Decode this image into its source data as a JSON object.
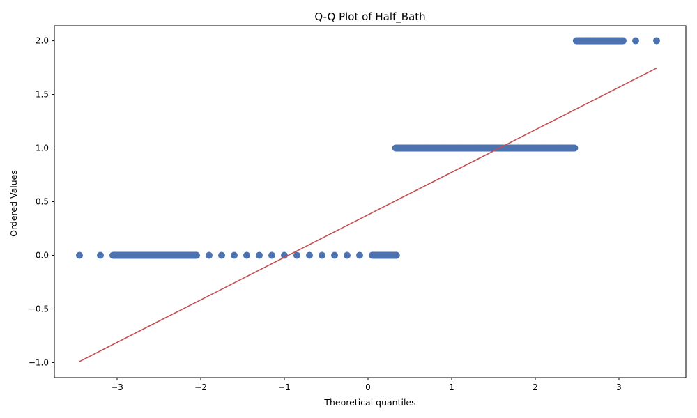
{
  "chart_data": {
    "type": "scatter",
    "title": "Q-Q Plot of Half_Bath",
    "xlabel": "Theoretical quantiles",
    "ylabel": "Ordered Values",
    "xlim": [
      -3.75,
      3.8
    ],
    "ylim": [
      -1.14,
      2.14
    ],
    "x_ticks": [
      -3,
      -2,
      -1,
      0,
      1,
      2,
      3
    ],
    "x_tick_labels": [
      "−3",
      "−2",
      "−1",
      "0",
      "1",
      "2",
      "3"
    ],
    "y_ticks": [
      -1.0,
      -0.5,
      0.0,
      0.5,
      1.0,
      1.5,
      2.0
    ],
    "y_tick_labels": [
      "−1.0",
      "−0.5",
      "0.0",
      "0.5",
      "1.0",
      "1.5",
      "2.0"
    ],
    "grid": false,
    "legend": "none",
    "point_color": "#4c72b0",
    "line_color": "#c44e52",
    "fit_line": {
      "x": [
        -3.45,
        3.45
      ],
      "y": [
        -0.99,
        1.745
      ]
    },
    "series": [
      {
        "values_level": 0,
        "x": [
          -3.45,
          -3.2,
          -3.05,
          -2.95,
          -2.88,
          -2.82,
          -2.77,
          -2.72,
          -2.67,
          -2.62,
          -2.57,
          -2.52,
          -2.46,
          -2.4,
          -2.33,
          -2.25,
          -2.15,
          -2.05,
          -1.9,
          -1.75,
          -1.6,
          -1.45,
          -1.3,
          -1.15,
          -1.0,
          -0.85,
          -0.7,
          -0.55,
          -0.4,
          -0.25,
          -0.1,
          0.05,
          0.15,
          0.22,
          0.28,
          0.32,
          0.34
        ],
        "y": [
          0,
          0,
          0,
          0,
          0,
          0,
          0,
          0,
          0,
          0,
          0,
          0,
          0,
          0,
          0,
          0,
          0,
          0,
          0,
          0,
          0,
          0,
          0,
          0,
          0,
          0,
          0,
          0,
          0,
          0,
          0,
          0,
          0,
          0,
          0,
          0,
          0
        ]
      },
      {
        "values_level": 1,
        "x": [
          0.33,
          0.36,
          0.4,
          0.45,
          0.52,
          0.6,
          0.7,
          0.8,
          0.9,
          1.0,
          1.1,
          1.2,
          1.3,
          1.4,
          1.5,
          1.6,
          1.7,
          1.8,
          1.9,
          2.0,
          2.1,
          2.2,
          2.3,
          2.4,
          2.47
        ],
        "y": [
          1,
          1,
          1,
          1,
          1,
          1,
          1,
          1,
          1,
          1,
          1,
          1,
          1,
          1,
          1,
          1,
          1,
          1,
          1,
          1,
          1,
          1,
          1,
          1,
          1
        ]
      },
      {
        "values_level": 2,
        "x": [
          2.49,
          2.53,
          2.57,
          2.61,
          2.65,
          2.7,
          2.76,
          2.83,
          2.9,
          2.96,
          3.05,
          3.2,
          3.45
        ],
        "y": [
          2,
          2,
          2,
          2,
          2,
          2,
          2,
          2,
          2,
          2,
          2,
          2,
          2
        ]
      }
    ]
  }
}
